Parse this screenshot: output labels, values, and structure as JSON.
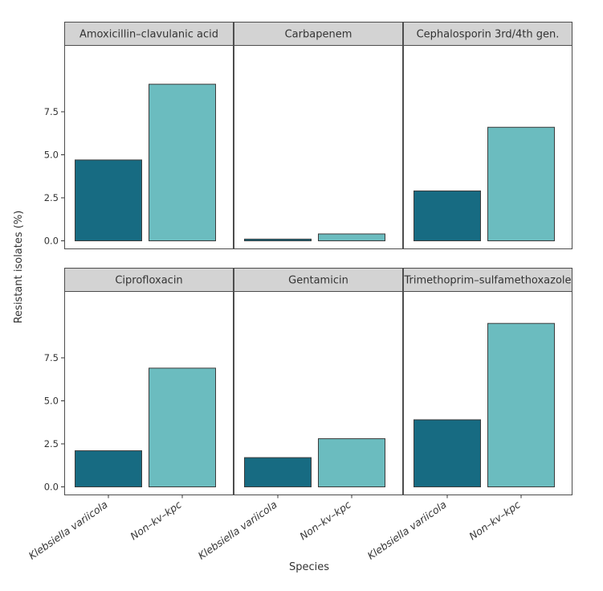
{
  "chart_data": {
    "type": "bar",
    "layout": "facet-grid",
    "xlabel": "Species",
    "ylabel": "Resistant isolates (%)",
    "categories": [
      "Klebsiella variicola",
      "Non–kv–kpc"
    ],
    "ylim": [
      0,
      9.9
    ],
    "yticks": [
      0.0,
      2.5,
      5.0,
      7.5
    ],
    "ytick_labels": [
      "0.0",
      "2.5",
      "5.0",
      "7.5"
    ],
    "grid": false,
    "legend": "none",
    "colors": {
      "Klebsiella variicola": "#176b82",
      "Non–kv–kpc": "#6bbcbf"
    },
    "facets": [
      {
        "title": "Amoxicillin–clavulanic acid",
        "values": [
          4.7,
          9.1
        ]
      },
      {
        "title": "Carbapenem",
        "values": [
          0.1,
          0.4
        ]
      },
      {
        "title": "Cephalosporin 3rd/4th gen.",
        "values": [
          2.9,
          6.6
        ]
      },
      {
        "title": "Ciprofloxacin",
        "values": [
          2.1,
          6.9
        ]
      },
      {
        "title": "Gentamicin",
        "values": [
          1.7,
          2.8
        ]
      },
      {
        "title": "Trimethoprim–sulfamethoxazole",
        "values": [
          3.9,
          9.5
        ]
      }
    ]
  }
}
